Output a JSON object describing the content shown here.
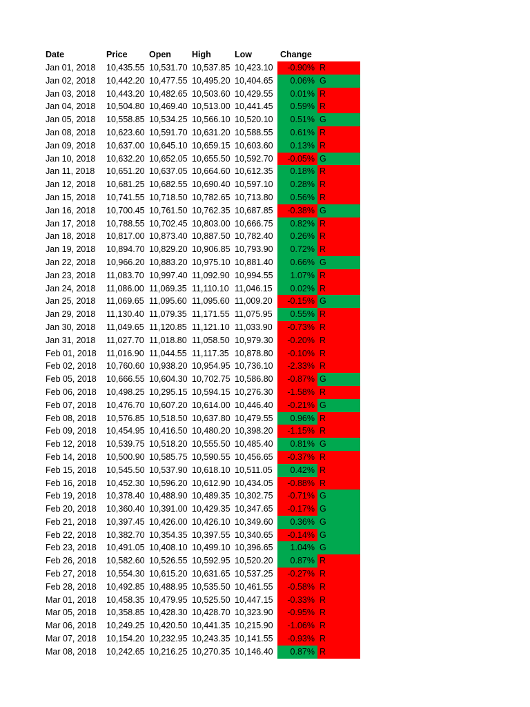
{
  "header": {
    "date": "Date",
    "price": "Price",
    "open": "Open",
    "high": "High",
    "low": "Low",
    "change": "Change %"
  },
  "rows": [
    {
      "date": "Jan 01, 2018",
      "price": "10,435.55",
      "open": "10,531.70",
      "high": "10,537.85",
      "low": "10,423.10",
      "change": "-0.90%",
      "flag": "R",
      "change_color": "red"
    },
    {
      "date": "Jan 02, 2018",
      "price": "10,442.20",
      "open": "10,477.55",
      "high": "10,495.20",
      "low": "10,404.65",
      "change": "0.06%",
      "flag": "G",
      "change_color": "green"
    },
    {
      "date": "Jan 03, 2018",
      "price": "10,443.20",
      "open": "10,482.65",
      "high": "10,503.60",
      "low": "10,429.55",
      "change": "0.01%",
      "flag": "R",
      "change_color": "green"
    },
    {
      "date": "Jan 04, 2018",
      "price": "10,504.80",
      "open": "10,469.40",
      "high": "10,513.00",
      "low": "10,441.45",
      "change": "0.59%",
      "flag": "R",
      "change_color": "green"
    },
    {
      "date": "Jan 05, 2018",
      "price": "10,558.85",
      "open": "10,534.25",
      "high": "10,566.10",
      "low": "10,520.10",
      "change": "0.51%",
      "flag": "G",
      "change_color": "green"
    },
    {
      "date": "Jan 08, 2018",
      "price": "10,623.60",
      "open": "10,591.70",
      "high": "10,631.20",
      "low": "10,588.55",
      "change": "0.61%",
      "flag": "R",
      "change_color": "green"
    },
    {
      "date": "Jan 09, 2018",
      "price": "10,637.00",
      "open": "10,645.10",
      "high": "10,659.15",
      "low": "10,603.60",
      "change": "0.13%",
      "flag": "R",
      "change_color": "green"
    },
    {
      "date": "Jan 10, 2018",
      "price": "10,632.20",
      "open": "10,652.05",
      "high": "10,655.50",
      "low": "10,592.70",
      "change": "-0.05%",
      "flag": "G",
      "change_color": "red"
    },
    {
      "date": "Jan 11, 2018",
      "price": "10,651.20",
      "open": "10,637.05",
      "high": "10,664.60",
      "low": "10,612.35",
      "change": "0.18%",
      "flag": "R",
      "change_color": "green"
    },
    {
      "date": "Jan 12, 2018",
      "price": "10,681.25",
      "open": "10,682.55",
      "high": "10,690.40",
      "low": "10,597.10",
      "change": "0.28%",
      "flag": "R",
      "change_color": "green"
    },
    {
      "date": "Jan 15, 2018",
      "price": "10,741.55",
      "open": "10,718.50",
      "high": "10,782.65",
      "low": "10,713.80",
      "change": "0.56%",
      "flag": "R",
      "change_color": "green"
    },
    {
      "date": "Jan 16, 2018",
      "price": "10,700.45",
      "open": "10,761.50",
      "high": "10,762.35",
      "low": "10,687.85",
      "change": "-0.38%",
      "flag": "G",
      "change_color": "red"
    },
    {
      "date": "Jan 17, 2018",
      "price": "10,788.55",
      "open": "10,702.45",
      "high": "10,803.00",
      "low": "10,666.75",
      "change": "0.82%",
      "flag": "R",
      "change_color": "green"
    },
    {
      "date": "Jan 18, 2018",
      "price": "10,817.00",
      "open": "10,873.40",
      "high": "10,887.50",
      "low": "10,782.40",
      "change": "0.26%",
      "flag": "R",
      "change_color": "green"
    },
    {
      "date": "Jan 19, 2018",
      "price": "10,894.70",
      "open": "10,829.20",
      "high": "10,906.85",
      "low": "10,793.90",
      "change": "0.72%",
      "flag": "R",
      "change_color": "green"
    },
    {
      "date": "Jan 22, 2018",
      "price": "10,966.20",
      "open": "10,883.20",
      "high": "10,975.10",
      "low": "10,881.40",
      "change": "0.66%",
      "flag": "G",
      "change_color": "green"
    },
    {
      "date": "Jan 23, 2018",
      "price": "11,083.70",
      "open": "10,997.40",
      "high": "11,092.90",
      "low": "10,994.55",
      "change": "1.07%",
      "flag": "R",
      "change_color": "green"
    },
    {
      "date": "Jan 24, 2018",
      "price": "11,086.00",
      "open": "11,069.35",
      "high": "11,110.10",
      "low": "11,046.15",
      "change": "0.02%",
      "flag": "R",
      "change_color": "green"
    },
    {
      "date": "Jan 25, 2018",
      "price": "11,069.65",
      "open": "11,095.60",
      "high": "11,095.60",
      "low": "11,009.20",
      "change": "-0.15%",
      "flag": "G",
      "change_color": "red"
    },
    {
      "date": "Jan 29, 2018",
      "price": "11,130.40",
      "open": "11,079.35",
      "high": "11,171.55",
      "low": "11,075.95",
      "change": "0.55%",
      "flag": "R",
      "change_color": "green"
    },
    {
      "date": "Jan 30, 2018",
      "price": "11,049.65",
      "open": "11,120.85",
      "high": "11,121.10",
      "low": "11,033.90",
      "change": "-0.73%",
      "flag": "R",
      "change_color": "red"
    },
    {
      "date": "Jan 31, 2018",
      "price": "11,027.70",
      "open": "11,018.80",
      "high": "11,058.50",
      "low": "10,979.30",
      "change": "-0.20%",
      "flag": "R",
      "change_color": "red"
    },
    {
      "date": "Feb 01, 2018",
      "price": "11,016.90",
      "open": "11,044.55",
      "high": "11,117.35",
      "low": "10,878.80",
      "change": "-0.10%",
      "flag": "R",
      "change_color": "red"
    },
    {
      "date": "Feb 02, 2018",
      "price": "10,760.60",
      "open": "10,938.20",
      "high": "10,954.95",
      "low": "10,736.10",
      "change": "-2.33%",
      "flag": "R",
      "change_color": "red"
    },
    {
      "date": "Feb 05, 2018",
      "price": "10,666.55",
      "open": "10,604.30",
      "high": "10,702.75",
      "low": "10,586.80",
      "change": "-0.87%",
      "flag": "G",
      "change_color": "red"
    },
    {
      "date": "Feb 06, 2018",
      "price": "10,498.25",
      "open": "10,295.15",
      "high": "10,594.15",
      "low": "10,276.30",
      "change": "-1.58%",
      "flag": "R",
      "change_color": "red"
    },
    {
      "date": "Feb 07, 2018",
      "price": "10,476.70",
      "open": "10,607.20",
      "high": "10,614.00",
      "low": "10,446.40",
      "change": "-0.21%",
      "flag": "G",
      "change_color": "red"
    },
    {
      "date": "Feb 08, 2018",
      "price": "10,576.85",
      "open": "10,518.50",
      "high": "10,637.80",
      "low": "10,479.55",
      "change": "0.96%",
      "flag": "R",
      "change_color": "green"
    },
    {
      "date": "Feb 09, 2018",
      "price": "10,454.95",
      "open": "10,416.50",
      "high": "10,480.20",
      "low": "10,398.20",
      "change": "-1.15%",
      "flag": "R",
      "change_color": "red"
    },
    {
      "date": "Feb 12, 2018",
      "price": "10,539.75",
      "open": "10,518.20",
      "high": "10,555.50",
      "low": "10,485.40",
      "change": "0.81%",
      "flag": "G",
      "change_color": "green"
    },
    {
      "date": "Feb 14, 2018",
      "price": "10,500.90",
      "open": "10,585.75",
      "high": "10,590.55",
      "low": "10,456.65",
      "change": "-0.37%",
      "flag": "R",
      "change_color": "red"
    },
    {
      "date": "Feb 15, 2018",
      "price": "10,545.50",
      "open": "10,537.90",
      "high": "10,618.10",
      "low": "10,511.05",
      "change": "0.42%",
      "flag": "R",
      "change_color": "green"
    },
    {
      "date": "Feb 16, 2018",
      "price": "10,452.30",
      "open": "10,596.20",
      "high": "10,612.90",
      "low": "10,434.05",
      "change": "-0.88%",
      "flag": "R",
      "change_color": "red"
    },
    {
      "date": "Feb 19, 2018",
      "price": "10,378.40",
      "open": "10,488.90",
      "high": "10,489.35",
      "low": "10,302.75",
      "change": "-0.71%",
      "flag": "G",
      "change_color": "red"
    },
    {
      "date": "Feb 20, 2018",
      "price": "10,360.40",
      "open": "10,391.00",
      "high": "10,429.35",
      "low": "10,347.65",
      "change": "-0.17%",
      "flag": "G",
      "change_color": "red"
    },
    {
      "date": "Feb 21, 2018",
      "price": "10,397.45",
      "open": "10,426.00",
      "high": "10,426.10",
      "low": "10,349.60",
      "change": "0.36%",
      "flag": "G",
      "change_color": "green"
    },
    {
      "date": "Feb 22, 2018",
      "price": "10,382.70",
      "open": "10,354.35",
      "high": "10,397.55",
      "low": "10,340.65",
      "change": "-0.14%",
      "flag": "G",
      "change_color": "red"
    },
    {
      "date": "Feb 23, 2018",
      "price": "10,491.05",
      "open": "10,408.10",
      "high": "10,499.10",
      "low": "10,396.65",
      "change": "1.04%",
      "flag": "G",
      "change_color": "green"
    },
    {
      "date": "Feb 26, 2018",
      "price": "10,582.60",
      "open": "10,526.55",
      "high": "10,592.95",
      "low": "10,520.20",
      "change": "0.87%",
      "flag": "R",
      "change_color": "green"
    },
    {
      "date": "Feb 27, 2018",
      "price": "10,554.30",
      "open": "10,615.20",
      "high": "10,631.65",
      "low": "10,537.25",
      "change": "-0.27%",
      "flag": "R",
      "change_color": "red"
    },
    {
      "date": "Feb 28, 2018",
      "price": "10,492.85",
      "open": "10,488.95",
      "high": "10,535.50",
      "low": "10,461.55",
      "change": "-0.58%",
      "flag": "R",
      "change_color": "red"
    },
    {
      "date": "Mar 01, 2018",
      "price": "10,458.35",
      "open": "10,479.95",
      "high": "10,525.50",
      "low": "10,447.15",
      "change": "-0.33%",
      "flag": "R",
      "change_color": "red"
    },
    {
      "date": "Mar 05, 2018",
      "price": "10,358.85",
      "open": "10,428.30",
      "high": "10,428.70",
      "low": "10,323.90",
      "change": "-0.95%",
      "flag": "R",
      "change_color": "red"
    },
    {
      "date": "Mar 06, 2018",
      "price": "10,249.25",
      "open": "10,420.50",
      "high": "10,441.35",
      "low": "10,215.90",
      "change": "-1.06%",
      "flag": "R",
      "change_color": "red"
    },
    {
      "date": "Mar 07, 2018",
      "price": "10,154.20",
      "open": "10,232.95",
      "high": "10,243.35",
      "low": "10,141.55",
      "change": "-0.93%",
      "flag": "R",
      "change_color": "red"
    },
    {
      "date": "Mar 08, 2018",
      "price": "10,242.65",
      "open": "10,216.25",
      "high": "10,270.35",
      "low": "10,146.40",
      "change": "0.87%",
      "flag": "R",
      "change_color": "green"
    }
  ],
  "colors": {
    "green": "#00a84f",
    "red": "#ff0000"
  }
}
